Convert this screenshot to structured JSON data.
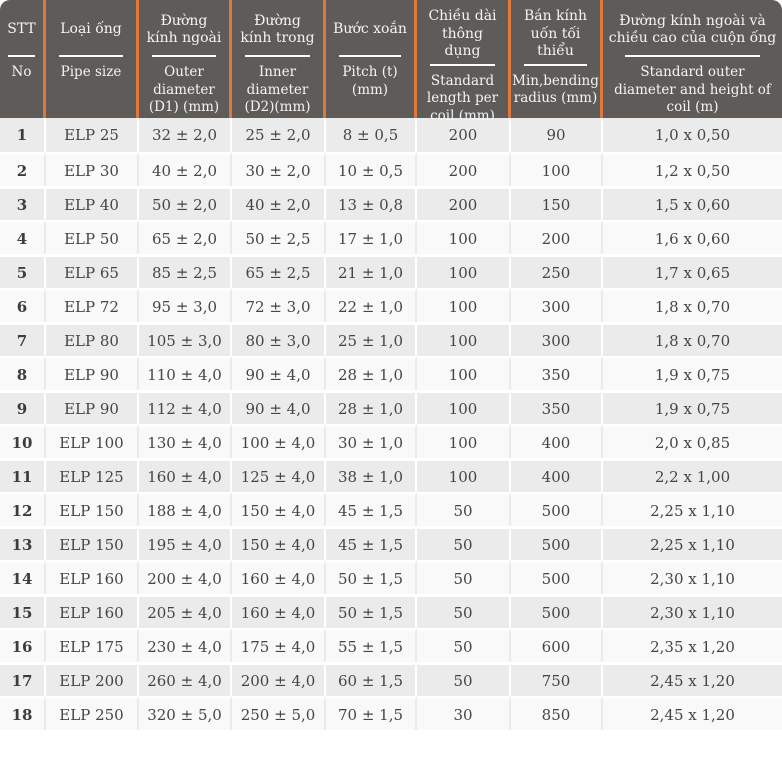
{
  "colors": {
    "header_bg": "#5e5b58",
    "header_text": "#f6f4f2",
    "accent_orange": "#e0773b",
    "row_odd_bg": "#ebebeb",
    "row_even_bg": "#f9f9f9",
    "body_text": "#454545",
    "divider_white": "#ffffff"
  },
  "chart_data": {
    "type": "table",
    "title": "",
    "columns": [
      {
        "vi": "STT",
        "en": "No"
      },
      {
        "vi": "Loại ống",
        "en": "Pipe size"
      },
      {
        "vi": "Đường kính ngoài",
        "en": "Outer diameter (D1) (mm)"
      },
      {
        "vi": "Đường kính trong",
        "en": "Inner diameter (D2)(mm)"
      },
      {
        "vi": "Bước xoắn",
        "en": "Pitch (t)(mm)"
      },
      {
        "vi": "Chiều dài thông dụng",
        "en": "Standard length per coil (mm)"
      },
      {
        "vi": "Bán kính uốn tối thiểu",
        "en": "Min,bending radius (mm)"
      },
      {
        "vi": "Đường kính ngoài và chiều cao của cuộn ống",
        "en": "Standard outer diameter and height of coil (m)"
      }
    ],
    "rows": [
      [
        "1",
        "ELP 25",
        "32 ± 2,0",
        "25 ± 2,0",
        "8 ± 0,5",
        "200",
        "90",
        "1,0 x 0,50"
      ],
      [
        "2",
        "ELP 30",
        "40 ± 2,0",
        "30 ± 2,0",
        "10 ± 0,5",
        "200",
        "100",
        "1,2 x 0,50"
      ],
      [
        "3",
        "ELP 40",
        "50 ± 2,0",
        "40 ± 2,0",
        "13 ± 0,8",
        "200",
        "150",
        "1,5 x 0,60"
      ],
      [
        "4",
        "ELP 50",
        "65 ± 2,0",
        "50 ± 2,5",
        "17 ± 1,0",
        "100",
        "200",
        "1,6 x 0,60"
      ],
      [
        "5",
        "ELP 65",
        "85 ± 2,5",
        "65 ± 2,5",
        "21 ± 1,0",
        "100",
        "250",
        "1,7 x 0,65"
      ],
      [
        "6",
        "ELP 72",
        "95 ± 3,0",
        "72 ± 3,0",
        "22 ± 1,0",
        "100",
        "300",
        "1,8 x 0,70"
      ],
      [
        "7",
        "ELP 80",
        "105 ± 3,0",
        "80 ± 3,0",
        "25 ± 1,0",
        "100",
        "300",
        "1,8 x 0,70"
      ],
      [
        "8",
        "ELP 90",
        "110 ± 4,0",
        "90 ± 4,0",
        "28 ± 1,0",
        "100",
        "350",
        "1,9 x 0,75"
      ],
      [
        "9",
        "ELP 90",
        "112 ± 4,0",
        "90 ± 4,0",
        "28 ± 1,0",
        "100",
        "350",
        "1,9 x 0,75"
      ],
      [
        "10",
        "ELP 100",
        "130 ± 4,0",
        "100 ± 4,0",
        "30 ± 1,0",
        "100",
        "400",
        "2,0 x 0,85"
      ],
      [
        "11",
        "ELP 125",
        "160 ± 4,0",
        "125 ± 4,0",
        "38 ± 1,0",
        "100",
        "400",
        "2,2 x 1,00"
      ],
      [
        "12",
        "ELP 150",
        "188 ± 4,0",
        "150 ± 4,0",
        "45 ± 1,5",
        "50",
        "500",
        "2,25 x 1,10"
      ],
      [
        "13",
        "ELP 150",
        "195 ± 4,0",
        "150 ± 4,0",
        "45 ± 1,5",
        "50",
        "500",
        "2,25 x 1,10"
      ],
      [
        "14",
        "ELP 160",
        "200 ± 4,0",
        "160 ± 4,0",
        "50 ± 1,5",
        "50",
        "500",
        "2,30 x 1,10"
      ],
      [
        "15",
        "ELP 160",
        "205 ± 4,0",
        "160 ± 4,0",
        "50 ± 1,5",
        "50",
        "500",
        "2,30 x 1,10"
      ],
      [
        "16",
        "ELP 175",
        "230 ± 4,0",
        "175 ± 4,0",
        "55 ± 1,5",
        "50",
        "600",
        "2,35 x 1,20"
      ],
      [
        "17",
        "ELP 200",
        "260 ± 4,0",
        "200 ± 4,0",
        "60 ± 1,5",
        "50",
        "750",
        "2,45 x 1,20"
      ],
      [
        "18",
        "ELP 250",
        "320 ± 5,0",
        "250 ± 5,0",
        "70 ± 1,5",
        "30",
        "850",
        "2,45 x 1,20"
      ]
    ]
  }
}
